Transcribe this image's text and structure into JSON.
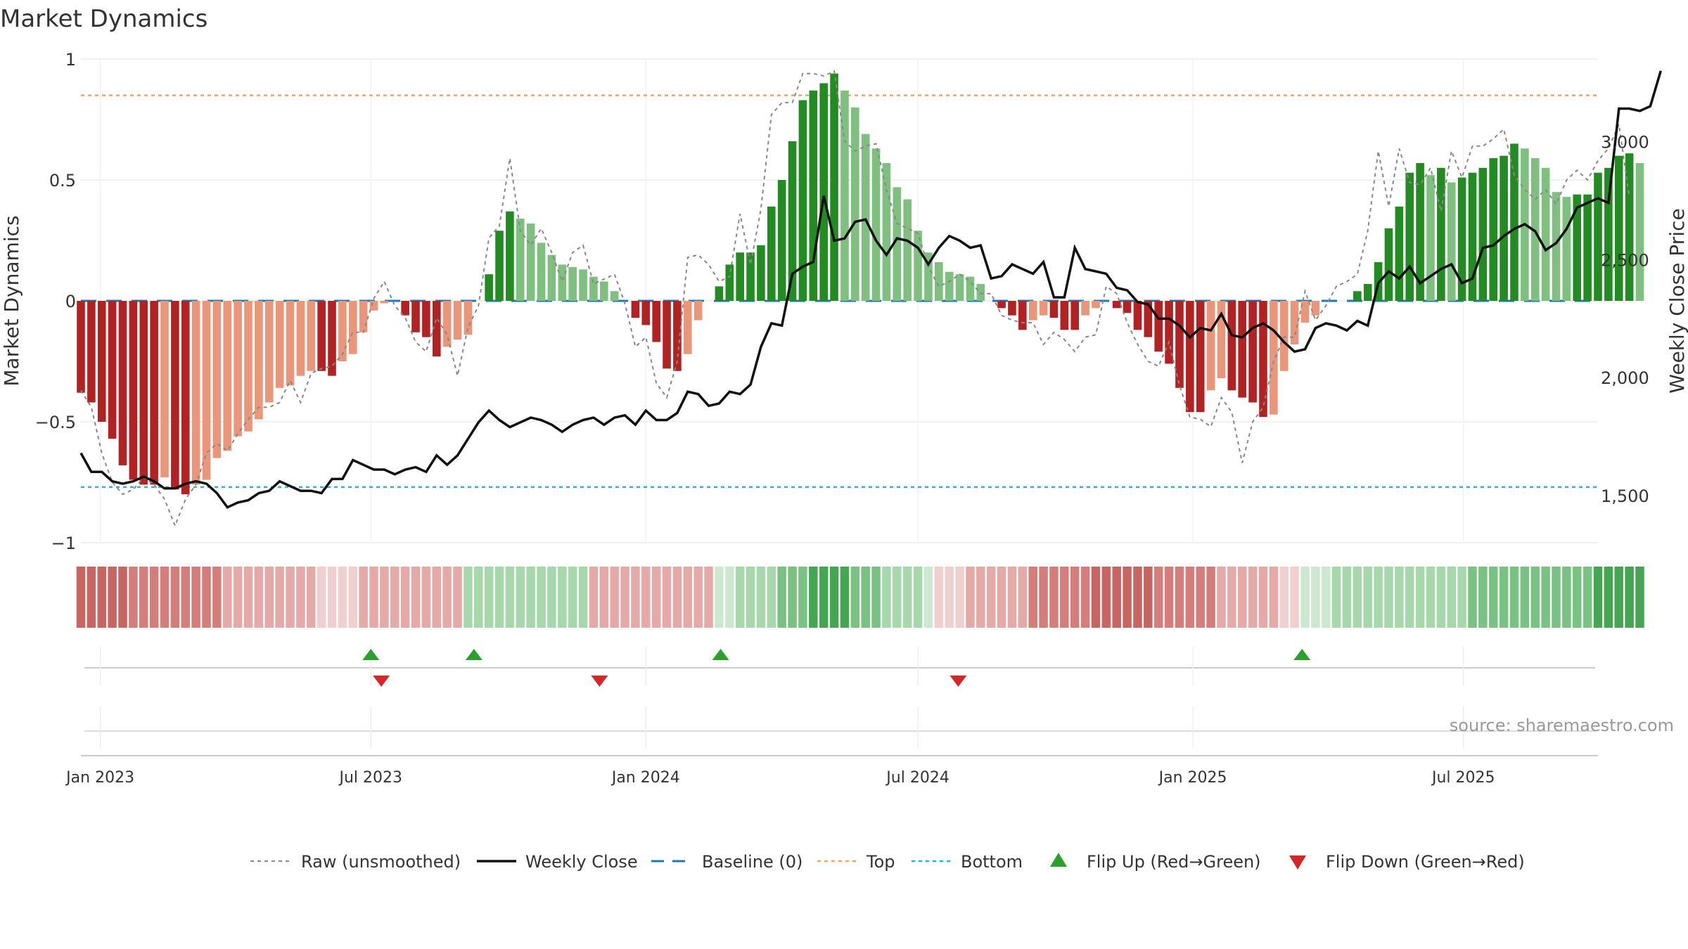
{
  "chart_data": {
    "type": "bar",
    "title": "Market Dynamics",
    "ylabel": "Market Dynamics",
    "y2label": "Weekly Close Price",
    "source": "source: sharemaestro.com",
    "ylim": [
      -1,
      1
    ],
    "y2lim": [
      1300,
      3350
    ],
    "yticks": [
      {
        "v": 1,
        "label": "1"
      },
      {
        "v": 0.5,
        "label": "0.5"
      },
      {
        "v": 0,
        "label": "0"
      },
      {
        "v": -0.5,
        "label": "−0.5"
      },
      {
        "v": -1,
        "label": "−1"
      }
    ],
    "y2ticks": [
      {
        "v": 3000,
        "label": "3,000"
      },
      {
        "v": 2500,
        "label": "2,500"
      },
      {
        "v": 2000,
        "label": "2,000"
      },
      {
        "v": 1500,
        "label": "1,500"
      }
    ],
    "xrange": [
      "2022-12-19",
      "2025-09-29"
    ],
    "xticks": [
      {
        "date": "2023-01-01",
        "label": "Jan 2023"
      },
      {
        "date": "2023-07-01",
        "label": "Jul 2023"
      },
      {
        "date": "2024-01-01",
        "label": "Jan 2024"
      },
      {
        "date": "2024-07-01",
        "label": "Jul 2024"
      },
      {
        "date": "2025-01-01",
        "label": "Jan 2025"
      },
      {
        "date": "2025-07-01",
        "label": "Jul 2025"
      }
    ],
    "grid": true,
    "legend_position": "bottom",
    "first_week": "2022-12-19",
    "top_level": 0.85,
    "bottom_level": -0.77,
    "colors": {
      "strong_green": "#228b22",
      "light_green": "#7fbf7f",
      "strong_red": "#b22222",
      "light_red": "#e9967a",
      "weekly_close": "#111111",
      "raw": "#888888",
      "baseline": "#1f77b4",
      "top": "#f4a460",
      "bottom": "#17becf",
      "flip_up": "#2ca02c",
      "flip_down": "#d62728"
    },
    "series": [
      {
        "name": "Market Dynamics",
        "values": [
          -0.38,
          -0.42,
          -0.5,
          -0.57,
          -0.68,
          -0.74,
          -0.76,
          -0.76,
          -0.73,
          -0.78,
          -0.8,
          -0.76,
          -0.74,
          -0.65,
          -0.62,
          -0.56,
          -0.54,
          -0.49,
          -0.42,
          -0.36,
          -0.35,
          -0.31,
          -0.29,
          -0.29,
          -0.31,
          -0.25,
          -0.22,
          -0.13,
          -0.04,
          -0.01,
          0.0,
          -0.06,
          -0.13,
          -0.15,
          -0.23,
          -0.19,
          -0.16,
          -0.14,
          0.0,
          0.11,
          0.29,
          0.37,
          0.34,
          0.32,
          0.24,
          0.19,
          0.15,
          0.14,
          0.13,
          0.1,
          0.08,
          0.04,
          0.0,
          -0.07,
          -0.1,
          -0.17,
          -0.28,
          -0.29,
          -0.22,
          -0.08,
          0.0,
          0.06,
          0.15,
          0.2,
          0.2,
          0.23,
          0.39,
          0.5,
          0.66,
          0.83,
          0.87,
          0.9,
          0.94,
          0.87,
          0.8,
          0.69,
          0.63,
          0.57,
          0.47,
          0.42,
          0.29,
          0.2,
          0.16,
          0.12,
          0.11,
          0.1,
          0.07,
          0.0,
          -0.03,
          -0.06,
          -0.12,
          -0.08,
          -0.06,
          -0.07,
          -0.12,
          -0.12,
          -0.06,
          -0.03,
          0.0,
          -0.03,
          -0.05,
          -0.12,
          -0.15,
          -0.21,
          -0.26,
          -0.36,
          -0.46,
          -0.46,
          -0.37,
          -0.32,
          -0.37,
          -0.4,
          -0.42,
          -0.48,
          -0.47,
          -0.29,
          -0.18,
          -0.09,
          -0.06,
          0.0,
          0.0,
          0.0,
          0.04,
          0.07,
          0.16,
          0.3,
          0.39,
          0.53,
          0.57,
          0.52,
          0.55,
          0.49,
          0.51,
          0.53,
          0.55,
          0.59,
          0.6,
          0.65,
          0.63,
          0.59,
          0.55,
          0.45,
          0.43,
          0.44,
          0.44,
          0.53,
          0.55,
          0.6,
          0.61,
          0.57
        ]
      },
      {
        "name": "Raw (unsmoothed)",
        "values": [
          -0.37,
          -0.44,
          -0.63,
          -0.75,
          -0.8,
          -0.78,
          -0.73,
          -0.76,
          -0.82,
          -0.93,
          -0.82,
          -0.76,
          -0.63,
          -0.59,
          -0.62,
          -0.55,
          -0.49,
          -0.44,
          -0.44,
          -0.42,
          -0.33,
          -0.42,
          -0.3,
          -0.28,
          -0.27,
          -0.22,
          -0.13,
          -0.13,
          0.01,
          0.08,
          -0.02,
          -0.07,
          -0.17,
          -0.21,
          -0.07,
          -0.14,
          -0.31,
          -0.11,
          -0.02,
          0.26,
          0.31,
          0.59,
          0.29,
          0.23,
          0.3,
          0.2,
          0.08,
          0.2,
          0.23,
          0.07,
          0.09,
          0.11,
          -0.01,
          -0.19,
          -0.15,
          -0.34,
          -0.4,
          -0.25,
          0.18,
          0.19,
          0.15,
          0.08,
          0.1,
          0.36,
          0.15,
          0.38,
          0.77,
          0.82,
          0.82,
          0.94,
          0.94,
          0.93,
          0.95,
          0.66,
          0.62,
          0.64,
          0.65,
          0.46,
          0.32,
          0.3,
          0.28,
          0.14,
          0.06,
          0.08,
          0.11,
          0.08,
          0.03,
          0.03,
          -0.06,
          -0.08,
          -0.09,
          -0.09,
          -0.18,
          -0.13,
          -0.16,
          -0.21,
          -0.15,
          -0.14,
          0.06,
          0.03,
          -0.09,
          -0.18,
          -0.25,
          -0.27,
          -0.17,
          -0.35,
          -0.48,
          -0.49,
          -0.52,
          -0.4,
          -0.46,
          -0.67,
          -0.5,
          -0.44,
          -0.25,
          -0.15,
          -0.15,
          0.04,
          -0.08,
          -0.02,
          0.06,
          0.08,
          0.11,
          0.29,
          0.62,
          0.39,
          0.63,
          0.49,
          0.48,
          0.55,
          0.37,
          0.62,
          0.51,
          0.64,
          0.64,
          0.67,
          0.71,
          0.52,
          0.46,
          0.42,
          0.46,
          0.4,
          0.5,
          0.54,
          0.5,
          0.58,
          0.63,
          0.73,
          0.43
        ]
      },
      {
        "name": "Weekly Close",
        "values": [
          1680,
          1600,
          1600,
          1560,
          1550,
          1560,
          1580,
          1560,
          1530,
          1530,
          1550,
          1560,
          1550,
          1510,
          1450,
          1470,
          1480,
          1510,
          1520,
          1560,
          1540,
          1520,
          1520,
          1510,
          1570,
          1570,
          1650,
          1630,
          1610,
          1610,
          1590,
          1610,
          1620,
          1600,
          1670,
          1630,
          1670,
          1740,
          1810,
          1860,
          1820,
          1790,
          1810,
          1830,
          1820,
          1800,
          1770,
          1800,
          1820,
          1830,
          1800,
          1830,
          1840,
          1800,
          1860,
          1820,
          1820,
          1850,
          1940,
          1930,
          1880,
          1890,
          1940,
          1930,
          1970,
          2130,
          2230,
          2220,
          2440,
          2470,
          2490,
          2770,
          2580,
          2590,
          2660,
          2670,
          2580,
          2520,
          2590,
          2580,
          2550,
          2480,
          2550,
          2600,
          2580,
          2550,
          2560,
          2420,
          2430,
          2480,
          2460,
          2440,
          2490,
          2340,
          2340,
          2550,
          2460,
          2450,
          2440,
          2380,
          2370,
          2320,
          2310,
          2250,
          2250,
          2220,
          2170,
          2210,
          2200,
          2270,
          2180,
          2170,
          2210,
          2230,
          2200,
          2150,
          2110,
          2120,
          2210,
          2230,
          2220,
          2200,
          2240,
          2220,
          2400,
          2450,
          2420,
          2470,
          2400,
          2430,
          2460,
          2480,
          2400,
          2420,
          2550,
          2560,
          2600,
          2630,
          2650,
          2620,
          2540,
          2570,
          2630,
          2720,
          2740,
          2760,
          2740,
          3140,
          3140,
          3130,
          3150,
          3300
        ]
      }
    ],
    "regime_strip": [
      {
        "from": "2022-12-19",
        "to": "2023-06-26",
        "tone": "red",
        "fade": "strong-to-light"
      },
      {
        "from": "2023-06-26",
        "to": "2023-09-04",
        "tone": "red",
        "fade": "light"
      },
      {
        "from": "2023-09-04",
        "to": "2023-11-27",
        "tone": "green",
        "fade": "light"
      },
      {
        "from": "2023-11-27",
        "to": "2024-02-19",
        "tone": "red",
        "fade": "light"
      },
      {
        "from": "2024-02-19",
        "to": "2024-07-15",
        "tone": "green",
        "fade": "light-strong-light"
      },
      {
        "from": "2024-07-15",
        "to": "2025-03-17",
        "tone": "red",
        "fade": "light-strong-light"
      },
      {
        "from": "2025-03-17",
        "to": "2025-09-29",
        "tone": "green",
        "fade": "light-to-medium"
      }
    ],
    "flips": [
      {
        "type": "up",
        "date": "2023-07-01"
      },
      {
        "type": "down",
        "date": "2023-07-08"
      },
      {
        "type": "up",
        "date": "2023-09-08"
      },
      {
        "type": "down",
        "date": "2023-12-01"
      },
      {
        "type": "up",
        "date": "2024-02-20"
      },
      {
        "type": "down",
        "date": "2024-07-28"
      },
      {
        "type": "up",
        "date": "2025-03-15"
      }
    ],
    "legend": [
      {
        "key": "raw",
        "label": "Raw (unsmoothed)",
        "style": "dotted"
      },
      {
        "key": "close",
        "label": "Weekly Close",
        "style": "line"
      },
      {
        "key": "baseline",
        "label": "Baseline (0)",
        "style": "dashed"
      },
      {
        "key": "top",
        "label": "Top",
        "style": "dotted"
      },
      {
        "key": "bottom",
        "label": "Bottom",
        "style": "dotted"
      },
      {
        "key": "flip_up",
        "label": "Flip Up (Red→Green)",
        "style": "tri-up"
      },
      {
        "key": "flip_down",
        "label": "Flip Down (Green→Red)",
        "style": "tri-down"
      }
    ]
  }
}
